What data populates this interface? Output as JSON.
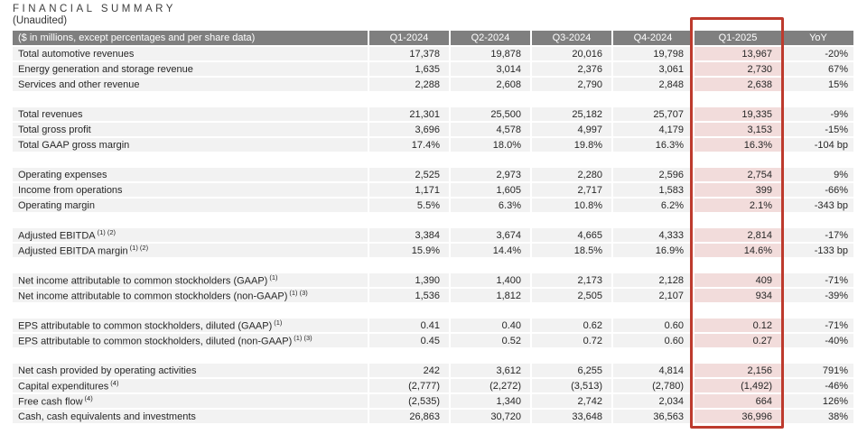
{
  "title": "FINANCIAL SUMMARY",
  "subtitle": "(Unaudited)",
  "colors": {
    "header_bar": "#7f7f7f",
    "row_background": "#f2f2f2",
    "highlight_pink": "#f2dcdb",
    "highlight_border_red": "#bd3a2d",
    "header_text": "#ffffff",
    "body_text": "#262626"
  },
  "table": {
    "header": {
      "label": "($ in millions, except percentages and per share data)",
      "columns": [
        "Q1-2024",
        "Q2-2024",
        "Q3-2024",
        "Q4-2024",
        "Q1-2025",
        "YoY"
      ],
      "highlighted_column": "Q1-2025"
    },
    "rows": [
      {
        "type": "data",
        "label": "Total automotive revenues",
        "sup": "",
        "values": [
          "17,378",
          "19,878",
          "20,016",
          "19,798",
          "13,967",
          "-20%"
        ]
      },
      {
        "type": "data",
        "label": "Energy generation and storage revenue",
        "sup": "",
        "values": [
          "1,635",
          "3,014",
          "2,376",
          "3,061",
          "2,730",
          "67%"
        ]
      },
      {
        "type": "data",
        "label": "Services and other revenue",
        "sup": "",
        "values": [
          "2,288",
          "2,608",
          "2,790",
          "2,848",
          "2,638",
          "15%"
        ]
      },
      {
        "type": "spacer"
      },
      {
        "type": "data",
        "label": "Total revenues",
        "sup": "",
        "values": [
          "21,301",
          "25,500",
          "25,182",
          "25,707",
          "19,335",
          "-9%"
        ]
      },
      {
        "type": "data",
        "label": "Total gross profit",
        "sup": "",
        "values": [
          "3,696",
          "4,578",
          "4,997",
          "4,179",
          "3,153",
          "-15%"
        ]
      },
      {
        "type": "data",
        "label": "Total GAAP gross margin",
        "sup": "",
        "values": [
          "17.4%",
          "18.0%",
          "19.8%",
          "16.3%",
          "16.3%",
          "-104 bp"
        ]
      },
      {
        "type": "spacer"
      },
      {
        "type": "data",
        "label": "Operating expenses",
        "sup": "",
        "values": [
          "2,525",
          "2,973",
          "2,280",
          "2,596",
          "2,754",
          "9%"
        ]
      },
      {
        "type": "data",
        "label": "Income from operations",
        "sup": "",
        "values": [
          "1,171",
          "1,605",
          "2,717",
          "1,583",
          "399",
          "-66%"
        ]
      },
      {
        "type": "data",
        "label": "Operating margin",
        "sup": "",
        "values": [
          "5.5%",
          "6.3%",
          "10.8%",
          "6.2%",
          "2.1%",
          "-343 bp"
        ]
      },
      {
        "type": "spacer"
      },
      {
        "type": "data",
        "label": "Adjusted EBITDA",
        "sup": "(1) (2)",
        "values": [
          "3,384",
          "3,674",
          "4,665",
          "4,333",
          "2,814",
          "-17%"
        ]
      },
      {
        "type": "data",
        "label": "Adjusted EBITDA margin",
        "sup": "(1) (2)",
        "values": [
          "15.9%",
          "14.4%",
          "18.5%",
          "16.9%",
          "14.6%",
          "-133 bp"
        ]
      },
      {
        "type": "spacer"
      },
      {
        "type": "data",
        "label": "Net income attributable to common stockholders (GAAP)",
        "sup": "(1)",
        "values": [
          "1,390",
          "1,400",
          "2,173",
          "2,128",
          "409",
          "-71%"
        ]
      },
      {
        "type": "data",
        "label": "Net income attributable to common stockholders (non-GAAP)",
        "sup": "(1) (3)",
        "values": [
          "1,536",
          "1,812",
          "2,505",
          "2,107",
          "934",
          "-39%"
        ]
      },
      {
        "type": "spacer"
      },
      {
        "type": "data",
        "label": "EPS attributable to common stockholders, diluted (GAAP)",
        "sup": "(1)",
        "values": [
          "0.41",
          "0.40",
          "0.62",
          "0.60",
          "0.12",
          "-71%"
        ]
      },
      {
        "type": "data",
        "label": "EPS attributable to common stockholders, diluted (non-GAAP)",
        "sup": "(1) (3)",
        "values": [
          "0.45",
          "0.52",
          "0.72",
          "0.60",
          "0.27",
          "-40%"
        ]
      },
      {
        "type": "spacer"
      },
      {
        "type": "data",
        "label": "Net cash provided by operating activities",
        "sup": "",
        "values": [
          "242",
          "3,612",
          "6,255",
          "4,814",
          "2,156",
          "791%"
        ]
      },
      {
        "type": "data",
        "label": "Capital expenditures",
        "sup": "(4)",
        "values": [
          "(2,777)",
          "(2,272)",
          "(3,513)",
          "(2,780)",
          "(1,492)",
          "-46%"
        ]
      },
      {
        "type": "data",
        "label": "Free cash flow",
        "sup": "(4)",
        "values": [
          "(2,535)",
          "1,340",
          "2,742",
          "2,034",
          "664",
          "126%"
        ]
      },
      {
        "type": "data",
        "label": "Cash, cash equivalents and investments",
        "sup": "",
        "values": [
          "26,863",
          "30,720",
          "33,648",
          "36,563",
          "36,996",
          "38%"
        ]
      }
    ]
  }
}
